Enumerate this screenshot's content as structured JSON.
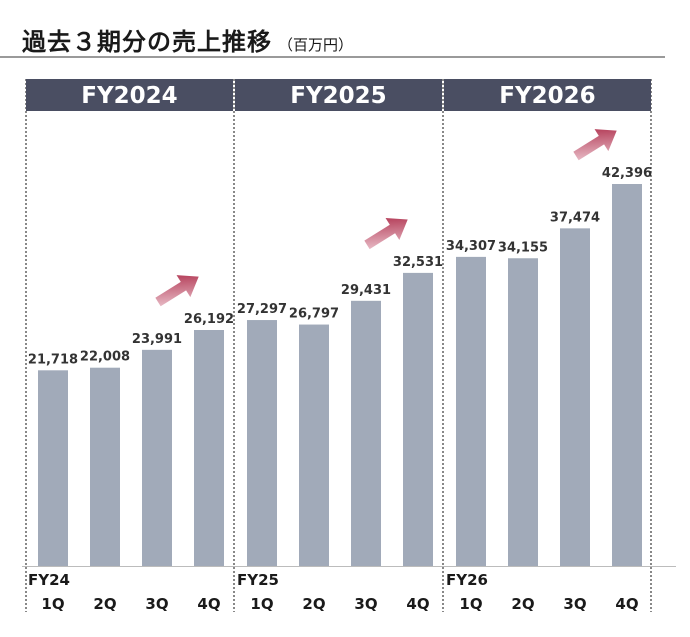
{
  "header": {
    "title": "過去３期分の売上推移",
    "unit": "（百万円）"
  },
  "colors": {
    "bar": "#a1aab9",
    "period_header": "#4a4e62",
    "arrow_start": "#f2d4dc",
    "arrow_end": "#a8203f",
    "baseline": "#bcbcbc"
  },
  "chart_data": {
    "type": "bar",
    "periods": [
      "FY2024",
      "FY2025",
      "FY2026"
    ],
    "fiscal_years": [
      "FY24",
      "FY25",
      "FY26"
    ],
    "quarters": [
      "1Q",
      "2Q",
      "3Q",
      "4Q"
    ],
    "series": [
      {
        "period": "FY2024",
        "values": [
          21718,
          22008,
          23991,
          26192
        ],
        "labels": [
          "21,718",
          "22,008",
          "23,991",
          "26,192"
        ]
      },
      {
        "period": "FY2025",
        "values": [
          27297,
          26797,
          29431,
          32531
        ],
        "labels": [
          "27,297",
          "26,797",
          "29,431",
          "32,531"
        ]
      },
      {
        "period": "FY2026",
        "values": [
          34307,
          34155,
          37474,
          42396
        ],
        "labels": [
          "34,307",
          "34,155",
          "37,474",
          "42,396"
        ]
      }
    ],
    "ylim": [
      0,
      42396
    ],
    "grid": false,
    "annotations": [
      "upward-trend-arrow",
      "upward-trend-arrow",
      "upward-trend-arrow"
    ]
  }
}
